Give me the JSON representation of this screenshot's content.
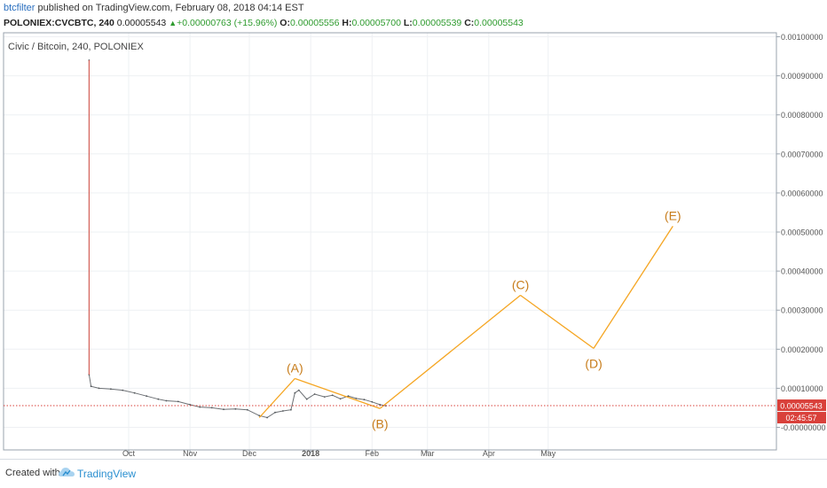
{
  "header": {
    "author": "btcfilter",
    "published": " published on TradingView.com, February 08, 2018 04:14 EST",
    "symbol": "POLONIEX:CVCBTC, 240",
    "last": "0.00005543",
    "change": "+0.00000763 (+15.96%)",
    "o_label": "O:",
    "o_value": "0.00005556",
    "h_label": "H:",
    "h_value": "0.00005700",
    "l_label": "L:",
    "l_value": "0.00005539",
    "c_label": "C:",
    "c_value": "0.00005543"
  },
  "chart_data": {
    "type": "line",
    "title": "Civic / Bitcoin, 240, POLONIEX",
    "x_ticks": [
      "Oct",
      "Nov",
      "Dec",
      "2018",
      "Feb",
      "Mar",
      "Apr",
      "May"
    ],
    "x_tick_dates": [
      "2017-10-01",
      "2017-11-01",
      "2017-12-01",
      "2018-01-01",
      "2018-02-01",
      "2018-03-01",
      "2018-04-01",
      "2018-05-01"
    ],
    "y_ticks": [
      "0.00100000",
      "0.00090000",
      "0.00080000",
      "0.00070000",
      "0.00060000",
      "0.00050000",
      "0.00040000",
      "0.00030000",
      "0.00020000",
      "0.00010000",
      "-0.00000000"
    ],
    "y_tick_values": [
      0.001,
      0.0009,
      0.0008,
      0.0007,
      0.0006,
      0.0005,
      0.0004,
      0.0003,
      0.0002,
      0.0001,
      0.0
    ],
    "ylim": [
      -2e-05,
      0.001
    ],
    "price_series": {
      "name": "CVCBTC",
      "x": [
        "2017-09-11",
        "2017-09-11",
        "2017-09-12",
        "2017-09-16",
        "2017-09-22",
        "2017-09-28",
        "2017-10-04",
        "2017-10-10",
        "2017-10-16",
        "2017-10-20",
        "2017-10-26",
        "2017-11-01",
        "2017-11-06",
        "2017-11-12",
        "2017-11-18",
        "2017-11-24",
        "2017-11-30",
        "2017-12-06",
        "2017-12-10",
        "2017-12-14",
        "2017-12-18",
        "2017-12-22",
        "2017-12-24",
        "2017-12-26",
        "2017-12-30",
        "2018-01-03",
        "2018-01-08",
        "2018-01-12",
        "2018-01-16",
        "2018-01-20",
        "2018-01-24",
        "2018-01-28",
        "2018-02-01",
        "2018-02-05",
        "2018-02-08"
      ],
      "y": [
        0.00094,
        0.000135,
        0.000105,
        0.0001,
        9.8e-05,
        9.5e-05,
        8.8e-05,
        8e-05,
        7.2e-05,
        6.8e-05,
        6.6e-05,
        5.8e-05,
        5.2e-05,
        5e-05,
        4.6e-05,
        4.7e-05,
        4.5e-05,
        3e-05,
        2.5e-05,
        3.8e-05,
        4.2e-05,
        4.5e-05,
        8.8e-05,
        9.5e-05,
        7.2e-05,
        8.5e-05,
        7.8e-05,
        8.2e-05,
        7.3e-05,
        8e-05,
        7.4e-05,
        7.1e-05,
        6.5e-05,
        5.8e-05,
        5.5e-05
      ]
    },
    "wave": {
      "points": [
        {
          "label": "",
          "x": "2017-12-06",
          "y": 2.5e-05
        },
        {
          "label": "(A)",
          "x": "2017-12-24",
          "y": 0.000125
        },
        {
          "label": "(B)",
          "x": "2018-02-05",
          "y": 4.8e-05
        },
        {
          "label": "(C)",
          "x": "2018-04-17",
          "y": 0.000338
        },
        {
          "label": "(D)",
          "x": "2018-05-24",
          "y": 0.000202
        },
        {
          "label": "(E)",
          "x": "2018-07-03",
          "y": 0.000515
        }
      ],
      "color": "#f5a623",
      "label_color": "#c77c1a"
    },
    "current_price": {
      "value": 5.543e-05,
      "label": "0.00005543",
      "countdown": "02:45:57",
      "color": "#d9403a"
    },
    "grid": true
  },
  "footer": {
    "created_with": "Created with",
    "brand": "TradingView"
  }
}
